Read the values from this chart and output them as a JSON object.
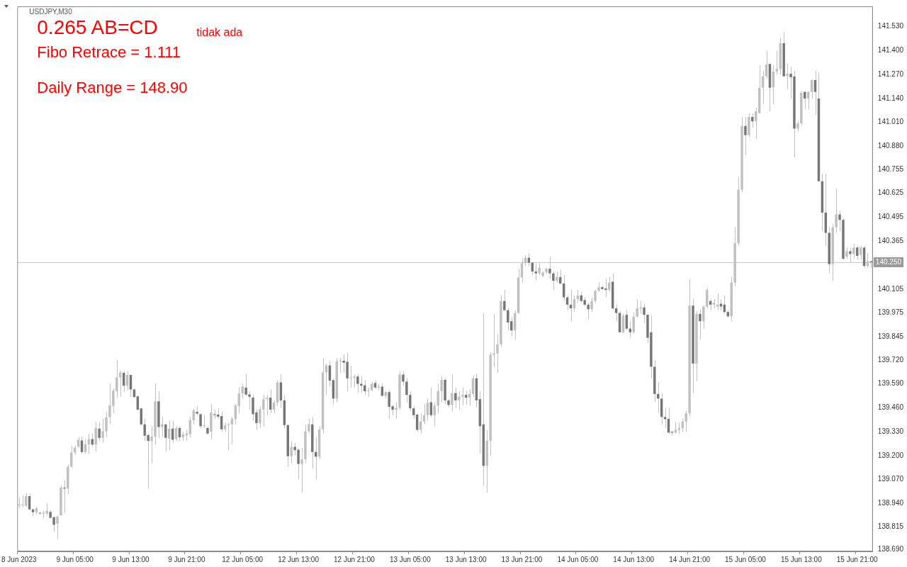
{
  "chart_data": {
    "type": "candlestick",
    "title": "USDJPY,M30",
    "annotations": [
      "0.265 AB=CD",
      "tidak ada",
      "Fibo Retrace = 1.111",
      "Daily Range = 148.90"
    ],
    "categories": [
      "8 Jun 2023",
      null,
      null,
      null,
      null,
      null,
      null,
      null,
      null,
      null,
      null,
      null,
      null,
      null,
      null,
      null,
      "9 Jun 05:00",
      null,
      null,
      null,
      null,
      null,
      null,
      null,
      null,
      null,
      null,
      null,
      null,
      null,
      null,
      null,
      "9 Jun 13:00",
      null,
      null,
      null,
      null,
      null,
      null,
      null,
      null,
      null,
      null,
      null,
      null,
      null,
      null,
      null,
      "9 Jun 21:00",
      null,
      null,
      null,
      null,
      null,
      null,
      null,
      null,
      null,
      null,
      null,
      null,
      null,
      null,
      null,
      "12 Jun 05:00",
      null,
      null,
      null,
      null,
      null,
      null,
      null,
      null,
      null,
      null,
      null,
      null,
      null,
      null,
      null,
      "12 Jun 13:00",
      null,
      null,
      null,
      null,
      null,
      null,
      null,
      null,
      null,
      null,
      null,
      null,
      null,
      null,
      null,
      "12 Jun 21:00",
      null,
      null,
      null,
      null,
      null,
      null,
      null,
      null,
      null,
      null,
      null,
      null,
      null,
      null,
      null,
      "13 Jun 05:00",
      null,
      null,
      null,
      null,
      null,
      null,
      null,
      null,
      null,
      null,
      null,
      null,
      null,
      null,
      null,
      "13 Jun 13:00",
      null,
      null,
      null,
      null,
      null,
      null,
      null,
      null,
      null,
      null,
      null,
      null,
      null,
      null,
      null,
      "13 Jun 21:00",
      null,
      null,
      null,
      null,
      null,
      null,
      null,
      null,
      null,
      null,
      null,
      null,
      null,
      null,
      null,
      "14 Jun 05:00",
      null,
      null,
      null,
      null,
      null,
      null,
      null,
      null,
      null,
      null,
      null,
      null,
      null,
      null,
      null,
      "14 Jun 13:00",
      null,
      null,
      null,
      null,
      null,
      null,
      null,
      null,
      null,
      null,
      null,
      null,
      null,
      null,
      null,
      "14 Jun 21:00",
      null,
      null,
      null,
      null,
      null,
      null,
      null,
      null,
      null,
      null,
      null,
      null,
      null,
      null,
      null,
      "15 Jun 05:00",
      null,
      null,
      null,
      null,
      null,
      null,
      null,
      null,
      null,
      null,
      null,
      null,
      null,
      null,
      null,
      "15 Jun 13:00",
      null,
      null,
      null,
      null,
      null,
      null,
      null,
      null,
      null,
      null,
      null,
      null,
      null,
      null,
      null,
      "15 Jun 21:00",
      null,
      null,
      null,
      null
    ],
    "colors": [
      "#c0c0c0",
      "#c0c0c0",
      "#c0c0c0",
      "#767676",
      "#767676",
      "#c0c0c0",
      "#767676",
      "#c0c0c0",
      "#c0c0c0",
      "#767676",
      "#767676",
      "#c0c0c0",
      "#c0c0c0",
      "#767676",
      "#c0c0c0",
      "#c0c0c0",
      "#c0c0c0",
      "#c0c0c0",
      "#767676",
      "#c0c0c0",
      "#c0c0c0",
      "#767676",
      "#c0c0c0",
      "#767676",
      "#c0c0c0",
      "#c0c0c0",
      "#c0c0c0",
      "#c0c0c0",
      "#c0c0c0",
      "#c0c0c0",
      "#767676",
      "#c0c0c0",
      "#767676",
      "#767676",
      "#767676",
      "#767676",
      "#767676",
      "#767676",
      "#c0c0c0",
      "#c0c0c0",
      "#767676",
      "#c0c0c0",
      "#767676",
      "#c0c0c0",
      "#767676",
      "#c0c0c0",
      "#767676",
      "#c0c0c0",
      "#c0c0c0",
      "#c0c0c0",
      "#c0c0c0",
      "#767676",
      "#767676",
      "#c0c0c0",
      "#767676",
      "#c0c0c0",
      "#767676",
      "#767676",
      "#767676",
      "#c0c0c0",
      "#c0c0c0",
      "#c0c0c0",
      "#c0c0c0",
      "#c0c0c0",
      "#c0c0c0",
      "#767676",
      "#767676",
      "#767676",
      "#767676",
      "#c0c0c0",
      "#c0c0c0",
      "#c0c0c0",
      "#767676",
      "#c0c0c0",
      "#c0c0c0",
      "#767676",
      "#767676",
      "#767676",
      "#c0c0c0",
      "#767676",
      "#767676",
      "#c0c0c0",
      "#c0c0c0",
      "#c0c0c0",
      "#767676",
      "#767676",
      "#c0c0c0",
      "#c0c0c0",
      "#c0c0c0",
      "#767676",
      "#767676",
      "#c0c0c0",
      "#c0c0c0",
      "#767676",
      "#767676",
      "#c0c0c0",
      "#c0c0c0",
      "#767676",
      "#767676",
      "#767676",
      "#c0c0c0",
      "#c0c0c0",
      "#767676",
      "#c0c0c0",
      "#767676",
      "#c0c0c0",
      "#767676",
      "#767676",
      "#c0c0c0",
      "#c0c0c0",
      "#767676",
      "#767676",
      "#767676",
      "#767676",
      "#767676",
      "#c0c0c0",
      "#c0c0c0",
      "#c0c0c0",
      "#767676",
      "#c0c0c0",
      "#c0c0c0",
      "#c0c0c0",
      "#767676",
      "#767676",
      "#c0c0c0",
      "#767676",
      "#c0c0c0",
      "#c0c0c0",
      "#767676",
      "#c0c0c0",
      "#c0c0c0",
      "#767676",
      "#767676",
      "#767676",
      "#c0c0c0",
      "#c0c0c0",
      "#c0c0c0",
      "#c0c0c0",
      "#c0c0c0",
      "#767676",
      "#767676",
      "#767676",
      "#c0c0c0",
      "#c0c0c0",
      "#c0c0c0",
      "#c0c0c0",
      "#767676",
      "#767676",
      "#767676",
      "#c0c0c0",
      "#c0c0c0",
      "#c0c0c0",
      "#767676",
      "#767676",
      "#c0c0c0",
      "#767676",
      "#767676",
      "#767676",
      "#767676",
      "#c0c0c0",
      "#c0c0c0",
      "#767676",
      "#767676",
      "#767676",
      "#c0c0c0",
      "#c0c0c0",
      "#c0c0c0",
      "#767676",
      "#767676",
      "#c0c0c0",
      "#767676",
      "#767676",
      "#767676",
      "#c0c0c0",
      "#767676",
      "#767676",
      "#c0c0c0",
      "#c0c0c0",
      "#c0c0c0",
      "#767676",
      "#767676",
      "#767676",
      "#767676",
      "#767676",
      "#767676",
      "#767676",
      "#767676",
      "#767676",
      "#c0c0c0",
      "#c0c0c0",
      "#c0c0c0",
      "#c0c0c0",
      "#c0c0c0",
      "#767676",
      "#c0c0c0",
      "#767676",
      "#c0c0c0",
      "#c0c0c0",
      "#767676",
      "#c0c0c0",
      "#c0c0c0",
      "#767676",
      "#767676",
      "#767676",
      "#c0c0c0",
      "#c0c0c0",
      "#c0c0c0",
      "#c0c0c0",
      "#767676",
      "#c0c0c0",
      "#767676",
      "#c0c0c0",
      "#c0c0c0",
      "#c0c0c0",
      "#c0c0c0",
      "#767676",
      "#c0c0c0",
      "#c0c0c0",
      "#c0c0c0",
      "#767676",
      "#c0c0c0",
      "#767676",
      "#767676",
      "#c0c0c0",
      "#c0c0c0",
      "#767676",
      "#c0c0c0",
      "#c0c0c0",
      "#767676",
      "#767676",
      "#767676",
      "#767676",
      "#767676",
      "#c0c0c0",
      "#c0c0c0",
      "#767676",
      "#767676",
      "#c0c0c0",
      "#767676",
      "#c0c0c0",
      "#767676",
      "#c0c0c0",
      "#767676",
      "#c0c0c0",
      "#767676"
    ],
    "ohlc": [
      [
        138.93,
        138.97,
        138.915,
        138.93
      ],
      [
        138.93,
        138.985,
        138.92,
        138.935
      ],
      [
        138.927,
        138.995,
        138.923,
        138.98
      ],
      [
        138.98,
        138.995,
        138.904,
        138.908
      ],
      [
        138.908,
        138.912,
        138.87,
        138.893
      ],
      [
        138.893,
        138.92,
        138.88,
        138.915
      ],
      [
        138.89,
        138.895,
        138.88,
        138.886
      ],
      [
        138.885,
        138.9,
        138.86,
        138.89
      ],
      [
        138.885,
        138.94,
        138.875,
        138.9
      ],
      [
        138.895,
        138.903,
        138.862,
        138.862
      ],
      [
        138.866,
        138.87,
        138.786,
        138.824
      ],
      [
        138.83,
        138.875,
        138.747,
        138.87
      ],
      [
        138.876,
        139.037,
        138.873,
        139.026
      ],
      [
        139.026,
        139.068,
        138.89,
        139.022
      ],
      [
        139.022,
        139.152,
        138.992,
        139.14
      ],
      [
        139.14,
        139.252,
        139.136,
        139.217
      ],
      [
        139.217,
        139.255,
        139.206,
        139.244
      ],
      [
        139.248,
        139.3,
        139.244,
        139.286
      ],
      [
        139.282,
        139.305,
        139.21,
        139.22
      ],
      [
        139.22,
        139.29,
        139.21,
        139.263
      ],
      [
        139.26,
        139.32,
        139.21,
        139.29
      ],
      [
        139.29,
        139.32,
        139.25,
        139.26
      ],
      [
        139.26,
        139.383,
        139.22,
        139.35
      ],
      [
        139.347,
        139.383,
        139.28,
        139.297
      ],
      [
        139.297,
        139.4,
        139.27,
        139.332
      ],
      [
        139.332,
        139.44,
        139.3,
        139.408
      ],
      [
        139.408,
        139.59,
        139.37,
        139.473
      ],
      [
        139.47,
        139.565,
        139.43,
        139.553
      ],
      [
        139.55,
        139.72,
        139.515,
        139.625
      ],
      [
        139.625,
        139.66,
        139.52,
        139.652
      ],
      [
        139.65,
        139.66,
        139.545,
        139.58
      ],
      [
        139.58,
        139.66,
        139.555,
        139.638
      ],
      [
        139.638,
        139.64,
        139.52,
        139.56
      ],
      [
        139.56,
        139.564,
        139.515,
        139.518
      ],
      [
        139.522,
        139.525,
        139.445,
        139.45
      ],
      [
        139.457,
        139.46,
        139.365,
        139.37
      ],
      [
        139.37,
        139.4,
        139.28,
        139.308
      ],
      [
        139.312,
        139.32,
        139.022,
        139.28
      ],
      [
        139.28,
        139.36,
        139.16,
        139.305
      ],
      [
        139.305,
        139.59,
        139.26,
        139.495
      ],
      [
        139.495,
        139.55,
        139.295,
        139.356
      ],
      [
        139.356,
        139.41,
        139.3,
        139.37
      ],
      [
        139.37,
        139.37,
        139.224,
        139.297
      ],
      [
        139.293,
        139.39,
        139.23,
        139.347
      ],
      [
        139.347,
        139.39,
        139.27,
        139.286
      ],
      [
        139.29,
        139.36,
        139.28,
        139.35
      ],
      [
        139.35,
        139.36,
        139.28,
        139.3
      ],
      [
        139.3,
        139.33,
        139.28,
        139.316
      ],
      [
        139.31,
        139.34,
        139.28,
        139.32
      ],
      [
        139.316,
        139.41,
        139.3,
        139.392
      ],
      [
        139.392,
        139.455,
        139.37,
        139.445
      ],
      [
        139.438,
        139.47,
        139.42,
        139.428
      ],
      [
        139.425,
        139.43,
        139.35,
        139.36
      ],
      [
        139.36,
        139.42,
        139.35,
        139.364
      ],
      [
        139.35,
        139.36,
        139.315,
        139.32
      ],
      [
        139.33,
        139.48,
        139.29,
        139.435
      ],
      [
        139.425,
        139.45,
        139.4,
        139.42
      ],
      [
        139.423,
        139.458,
        139.4,
        139.412
      ],
      [
        139.415,
        139.44,
        139.33,
        139.343
      ],
      [
        139.343,
        139.38,
        139.33,
        139.366
      ],
      [
        139.366,
        139.38,
        139.23,
        139.37
      ],
      [
        139.37,
        139.41,
        139.26,
        139.4
      ],
      [
        139.4,
        139.48,
        139.37,
        139.473
      ],
      [
        139.47,
        139.57,
        139.43,
        139.538
      ],
      [
        139.538,
        139.59,
        139.51,
        139.575
      ],
      [
        139.57,
        139.645,
        139.525,
        139.532
      ],
      [
        139.532,
        139.55,
        139.45,
        139.52
      ],
      [
        139.515,
        139.53,
        139.39,
        139.425
      ],
      [
        139.435,
        139.45,
        139.34,
        139.377
      ],
      [
        139.377,
        139.47,
        139.35,
        139.453
      ],
      [
        139.45,
        139.53,
        139.36,
        139.507
      ],
      [
        139.507,
        139.53,
        139.42,
        139.515
      ],
      [
        139.515,
        139.56,
        139.43,
        139.45
      ],
      [
        139.45,
        139.5,
        139.43,
        139.488
      ],
      [
        139.488,
        139.61,
        139.47,
        139.598
      ],
      [
        139.598,
        139.64,
        139.46,
        139.5
      ],
      [
        139.5,
        139.53,
        139.35,
        139.366
      ],
      [
        139.366,
        139.37,
        139.14,
        139.197
      ],
      [
        139.197,
        139.28,
        139.16,
        139.248
      ],
      [
        139.248,
        139.27,
        139.2,
        139.23
      ],
      [
        139.232,
        139.24,
        139.07,
        139.155
      ],
      [
        139.155,
        139.24,
        139.0,
        139.18
      ],
      [
        139.18,
        139.37,
        139.16,
        139.332
      ],
      [
        139.332,
        139.4,
        139.32,
        139.37
      ],
      [
        139.37,
        139.41,
        139.13,
        139.22
      ],
      [
        139.22,
        139.3,
        139.07,
        139.194
      ],
      [
        139.194,
        139.36,
        139.18,
        139.342
      ],
      [
        139.342,
        139.73,
        139.32,
        139.652
      ],
      [
        139.652,
        139.7,
        139.53,
        139.69
      ],
      [
        139.69,
        139.715,
        139.575,
        139.607
      ],
      [
        139.61,
        139.62,
        139.48,
        139.51
      ],
      [
        139.51,
        139.73,
        139.49,
        139.713
      ],
      [
        139.713,
        139.73,
        139.65,
        139.716
      ],
      [
        139.716,
        139.75,
        139.65,
        139.705
      ],
      [
        139.71,
        139.76,
        139.55,
        139.62
      ],
      [
        139.62,
        139.69,
        139.57,
        139.624
      ],
      [
        139.624,
        139.64,
        139.57,
        139.63
      ],
      [
        139.63,
        139.645,
        139.54,
        139.59
      ],
      [
        139.59,
        139.63,
        139.54,
        139.58
      ],
      [
        139.582,
        139.61,
        139.53,
        139.55
      ],
      [
        139.55,
        139.57,
        139.52,
        139.555
      ],
      [
        139.555,
        139.6,
        139.55,
        139.59
      ],
      [
        139.595,
        139.61,
        139.56,
        139.57
      ],
      [
        139.57,
        139.59,
        139.555,
        139.575
      ],
      [
        139.575,
        139.59,
        139.52,
        139.525
      ],
      [
        139.525,
        139.55,
        139.51,
        139.545
      ],
      [
        139.545,
        139.555,
        139.4,
        139.465
      ],
      [
        139.468,
        139.475,
        139.42,
        139.45
      ],
      [
        139.45,
        139.49,
        139.4,
        139.46
      ],
      [
        139.46,
        139.66,
        139.45,
        139.64
      ],
      [
        139.64,
        139.66,
        139.58,
        139.602
      ],
      [
        139.602,
        139.62,
        139.49,
        139.53
      ],
      [
        139.53,
        139.55,
        139.44,
        139.457
      ],
      [
        139.457,
        139.47,
        139.4,
        139.42
      ],
      [
        139.423,
        139.43,
        139.33,
        139.34
      ],
      [
        139.34,
        139.43,
        139.32,
        139.385
      ],
      [
        139.385,
        139.48,
        139.37,
        139.42
      ],
      [
        139.42,
        139.51,
        139.39,
        139.487
      ],
      [
        139.49,
        139.57,
        139.41,
        139.42
      ],
      [
        139.42,
        139.49,
        139.36,
        139.472
      ],
      [
        139.472,
        139.59,
        139.43,
        139.551
      ],
      [
        139.551,
        139.633,
        139.49,
        139.612
      ],
      [
        139.612,
        139.62,
        139.48,
        139.5
      ],
      [
        139.5,
        139.51,
        139.465,
        139.475
      ],
      [
        139.475,
        139.64,
        139.44,
        139.54
      ],
      [
        139.54,
        139.57,
        139.46,
        139.5
      ],
      [
        139.5,
        139.55,
        139.45,
        139.52
      ],
      [
        139.52,
        139.57,
        139.47,
        139.53
      ],
      [
        139.53,
        139.55,
        139.475,
        139.515
      ],
      [
        139.515,
        139.56,
        139.47,
        139.535
      ],
      [
        139.535,
        139.635,
        139.52,
        139.62
      ],
      [
        139.62,
        139.645,
        139.46,
        139.5
      ],
      [
        139.507,
        139.55,
        139.21,
        139.36
      ],
      [
        139.37,
        139.973,
        139.037,
        139.145
      ],
      [
        139.145,
        139.34,
        139.0,
        139.28
      ],
      [
        139.28,
        139.76,
        139.2,
        139.747
      ],
      [
        139.747,
        139.97,
        139.68,
        139.755
      ],
      [
        139.755,
        139.86,
        139.65,
        139.805
      ],
      [
        139.805,
        140.07,
        139.79,
        140.04
      ],
      [
        140.04,
        140.1,
        139.985,
        139.99
      ],
      [
        139.99,
        140.0,
        139.88,
        139.923
      ],
      [
        139.93,
        139.95,
        139.85,
        139.88
      ],
      [
        139.88,
        139.99,
        139.83,
        139.975
      ],
      [
        139.975,
        140.215,
        139.97,
        140.167
      ],
      [
        140.167,
        140.27,
        140.14,
        140.245
      ],
      [
        140.245,
        140.29,
        140.23,
        140.275
      ],
      [
        140.275,
        140.3,
        140.23,
        140.248
      ],
      [
        140.248,
        140.25,
        140.18,
        140.2
      ],
      [
        140.2,
        140.245,
        140.15,
        140.19
      ],
      [
        140.19,
        140.245,
        140.18,
        140.22
      ],
      [
        140.177,
        140.2,
        140.17,
        140.195
      ],
      [
        140.195,
        140.22,
        140.19,
        140.215
      ],
      [
        140.215,
        140.28,
        140.16,
        140.19
      ],
      [
        140.19,
        140.2,
        140.1,
        140.15
      ],
      [
        140.15,
        140.2,
        140.14,
        140.17
      ],
      [
        140.17,
        140.21,
        140.13,
        140.135
      ],
      [
        140.135,
        140.18,
        140.04,
        140.06
      ],
      [
        140.06,
        140.07,
        139.99,
        140.02
      ],
      [
        140.02,
        140.1,
        139.93,
        140.0
      ],
      [
        140.0,
        140.07,
        139.98,
        140.05
      ],
      [
        140.05,
        140.1,
        140.03,
        140.07
      ],
      [
        140.07,
        140.09,
        140.03,
        140.04
      ],
      [
        140.045,
        140.06,
        140.01,
        140.02
      ],
      [
        140.02,
        140.03,
        139.94,
        139.995
      ],
      [
        139.995,
        140.06,
        139.98,
        140.04
      ],
      [
        140.04,
        140.1,
        140.03,
        140.095
      ],
      [
        140.095,
        140.14,
        140.09,
        140.115
      ],
      [
        140.115,
        140.12,
        140.1,
        140.105
      ],
      [
        140.108,
        140.16,
        140.06,
        140.1
      ],
      [
        140.1,
        140.17,
        140.09,
        140.14
      ],
      [
        140.145,
        140.19,
        139.99,
        140.0
      ],
      [
        140.0,
        140.02,
        139.93,
        139.975
      ],
      [
        139.975,
        139.985,
        139.87,
        139.87
      ],
      [
        139.87,
        139.97,
        139.865,
        139.96
      ],
      [
        139.965,
        139.99,
        139.88,
        139.89
      ],
      [
        139.89,
        139.93,
        139.84,
        139.87
      ],
      [
        139.87,
        139.98,
        139.865,
        139.955
      ],
      [
        139.955,
        140.05,
        139.95,
        140.0
      ],
      [
        140.0,
        140.04,
        139.97,
        140.005
      ],
      [
        140.005,
        140.025,
        139.92,
        139.965
      ],
      [
        139.965,
        139.97,
        139.81,
        139.84
      ],
      [
        139.87,
        139.96,
        139.62,
        139.683
      ],
      [
        139.683,
        139.72,
        139.49,
        139.535
      ],
      [
        139.535,
        139.6,
        139.43,
        139.51
      ],
      [
        139.51,
        139.54,
        139.37,
        139.41
      ],
      [
        139.41,
        139.46,
        139.35,
        139.398
      ],
      [
        139.4,
        139.46,
        139.32,
        139.325
      ],
      [
        139.33,
        139.335,
        139.31,
        139.325
      ],
      [
        139.325,
        139.385,
        139.32,
        139.34
      ],
      [
        139.34,
        139.38,
        139.32,
        139.35
      ],
      [
        139.35,
        139.4,
        139.33,
        139.385
      ],
      [
        139.385,
        139.445,
        139.33,
        139.43
      ],
      [
        139.43,
        140.16,
        139.41,
        140.015
      ],
      [
        140.015,
        140.05,
        139.54,
        139.7
      ],
      [
        139.7,
        139.985,
        139.605,
        139.97
      ],
      [
        139.97,
        139.995,
        139.83,
        139.93
      ],
      [
        139.93,
        140.015,
        139.89,
        140.01
      ],
      [
        140.01,
        140.11,
        140.0,
        140.1
      ],
      [
        140.04,
        140.05,
        139.99,
        140.02
      ],
      [
        140.02,
        140.05,
        140.0,
        140.03
      ],
      [
        140.01,
        140.08,
        139.99,
        140.02
      ],
      [
        140.025,
        140.05,
        139.99,
        140.01
      ],
      [
        140.02,
        140.07,
        139.975,
        139.98
      ],
      [
        139.98,
        139.99,
        139.95,
        139.957
      ],
      [
        139.957,
        140.17,
        139.93,
        140.14
      ],
      [
        140.14,
        140.44,
        140.12,
        140.354
      ],
      [
        140.354,
        140.71,
        140.34,
        140.645
      ],
      [
        140.645,
        141.04,
        140.63,
        140.99
      ],
      [
        140.99,
        141.04,
        140.83,
        140.94
      ],
      [
        140.94,
        141.06,
        140.93,
        141.04
      ],
      [
        141.04,
        141.06,
        140.98,
        141.015
      ],
      [
        141.015,
        141.09,
        140.92,
        141.07
      ],
      [
        141.06,
        141.32,
        141.06,
        141.198
      ],
      [
        141.198,
        141.29,
        141.11,
        141.26
      ],
      [
        141.26,
        141.4,
        141.25,
        141.324
      ],
      [
        141.327,
        141.33,
        141.07,
        141.198
      ],
      [
        141.2,
        141.32,
        141.11,
        141.286
      ],
      [
        141.286,
        141.4,
        141.27,
        141.3
      ],
      [
        141.3,
        141.47,
        141.27,
        141.44
      ],
      [
        141.44,
        141.5,
        141.26,
        141.26
      ],
      [
        141.262,
        141.33,
        141.19,
        141.274
      ],
      [
        141.274,
        141.31,
        141.14,
        141.255
      ],
      [
        141.26,
        141.29,
        140.82,
        140.976
      ],
      [
        140.976,
        141.02,
        140.96,
        141.005
      ],
      [
        141.005,
        141.18,
        140.99,
        141.17
      ],
      [
        141.175,
        141.18,
        141.08,
        141.14
      ],
      [
        141.14,
        141.18,
        141.08,
        141.175
      ],
      [
        141.175,
        141.245,
        141.14,
        141.24
      ],
      [
        141.24,
        141.29,
        141.05,
        141.175
      ],
      [
        141.14,
        141.28,
        140.69,
        140.69
      ],
      [
        140.69,
        140.73,
        140.42,
        140.52
      ],
      [
        140.52,
        140.73,
        140.34,
        140.41
      ],
      [
        140.41,
        140.44,
        140.19,
        140.24
      ],
      [
        140.24,
        140.46,
        140.15,
        140.44
      ],
      [
        140.44,
        140.65,
        140.41,
        140.51
      ],
      [
        140.51,
        140.53,
        140.42,
        140.48
      ],
      [
        140.48,
        140.49,
        140.26,
        140.27
      ],
      [
        140.28,
        140.33,
        140.27,
        140.31
      ],
      [
        140.31,
        140.33,
        140.25,
        140.295
      ],
      [
        140.295,
        140.35,
        140.27,
        140.33
      ],
      [
        140.33,
        140.34,
        140.265,
        140.285
      ],
      [
        140.29,
        140.34,
        140.265,
        140.33
      ],
      [
        140.33,
        140.34,
        140.22,
        140.23
      ],
      [
        140.23,
        140.3,
        140.22,
        140.255
      ],
      [
        140.255,
        140.26,
        140.22,
        140.25
      ]
    ],
    "ylim": [
      138.68,
      141.64
    ],
    "yticks": [
      {
        "value": 138.69,
        "label": "138.690"
      },
      138.815,
      {
        "value": 138.94,
        "label": "138.940"
      },
      {
        "value": 139.07,
        "label": "139.070"
      },
      {
        "value": 139.2,
        "label": "139.200"
      },
      {
        "value": 139.33,
        "label": "139.330"
      },
      {
        "value": 139.46,
        "label": "139.460"
      },
      {
        "value": 139.59,
        "label": "139.590"
      },
      {
        "value": 139.72,
        "label": "139.720"
      },
      139.845,
      139.975,
      140.105,
      140.365,
      140.495,
      140.625,
      140.755,
      {
        "value": 140.88,
        "label": "140.880"
      },
      {
        "value": 141.01,
        "label": "141.010"
      },
      {
        "value": 141.14,
        "label": "141.140"
      },
      {
        "value": 141.27,
        "label": "141.270"
      },
      {
        "value": 141.4,
        "label": "141.400"
      },
      {
        "value": 141.53,
        "label": "141.530"
      }
    ],
    "ref_lines": [
      {
        "axis": "y",
        "value": 140.25,
        "label": "140.250",
        "color": "#c8c8c8"
      }
    ],
    "legend": false
  }
}
